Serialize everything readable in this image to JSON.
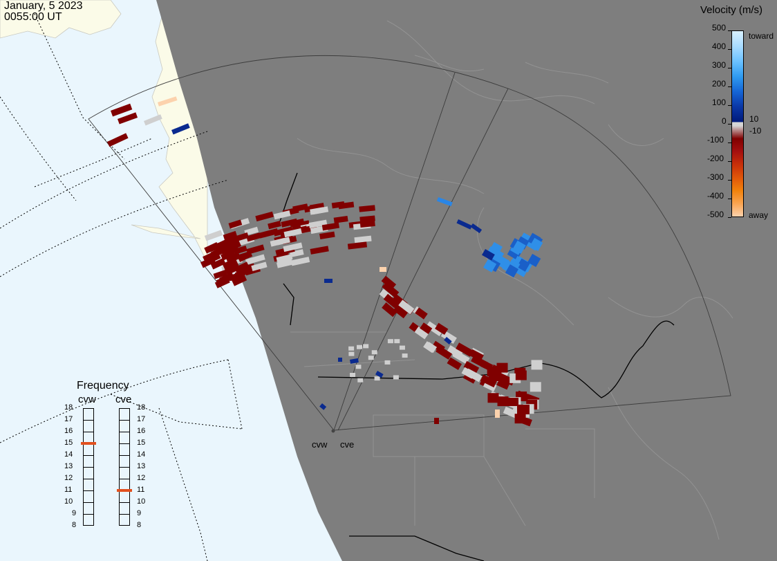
{
  "header": {
    "date": "January, 5 2023",
    "time": "0055:00 UT"
  },
  "colorbar": {
    "title": "Velocity (m/s)",
    "ticks": [
      "500",
      "400",
      "300",
      "200",
      "100",
      "0",
      "-100",
      "-200",
      "-300",
      "-400",
      "-500"
    ],
    "side_labels": {
      "toward": "toward",
      "ten": "10",
      "neg_ten": "-10",
      "away": "away"
    },
    "colors_toward": [
      "#d9f1ff",
      "#a9dcff",
      "#6cc2ff",
      "#2f9bf0",
      "#1565d6",
      "#0a37a6",
      "#001a7a"
    ],
    "colors_away": [
      "#800000",
      "#a51010",
      "#c8300a",
      "#e0560a",
      "#f2820c",
      "#f9a451",
      "#fcd2ad"
    ],
    "zero_color": "#d6d6d6"
  },
  "frequency": {
    "title": "Frequency",
    "radars": [
      {
        "name": "cvw",
        "freq_mhz": 15
      },
      {
        "name": "cve",
        "freq_mhz": 11
      }
    ],
    "levels": [
      "18",
      "17",
      "16",
      "15",
      "14",
      "13",
      "12",
      "11",
      "10",
      "9",
      "8"
    ],
    "marker_color": "#e2501e"
  },
  "map": {
    "radar_labels": [
      "cvw",
      "cve"
    ],
    "colors": {
      "ocean": "#eaf6fd",
      "land_day": "#fbfbe8",
      "night": "#7e7e7e",
      "borders": "#8f8f8f",
      "country_borders": "#000000"
    }
  }
}
